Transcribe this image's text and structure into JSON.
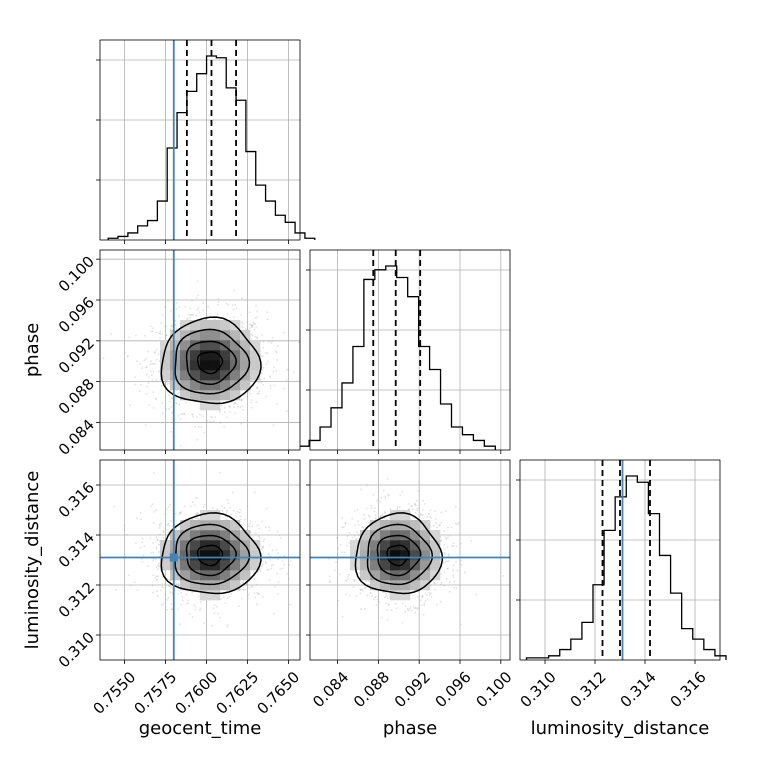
{
  "chart_data": {
    "type": "corner",
    "parameters": [
      "geocent_time",
      "phase",
      "luminosity_distance"
    ],
    "ranges": {
      "geocent_time": [
        0.7535,
        0.7657
      ],
      "phase": [
        0.0813,
        0.1009
      ],
      "luminosity_distance": [
        0.309,
        0.317
      ]
    },
    "ticks": {
      "geocent_time": [
        "0.7550",
        "0.7575",
        "0.7600",
        "0.7625",
        "0.7650"
      ],
      "phase": [
        "0.084",
        "0.088",
        "0.092",
        "0.096",
        "0.100"
      ],
      "luminosity_distance": [
        "0.310",
        "0.312",
        "0.314",
        "0.316"
      ]
    },
    "injection": {
      "geocent_time": 0.758,
      "phase": null,
      "luminosity_distance": 0.3131
    },
    "quantiles": {
      "geocent_time": [
        0.7588,
        0.7603,
        0.7618
      ],
      "phase": [
        0.0875,
        0.0897,
        0.0921
      ],
      "luminosity_distance": [
        0.3123,
        0.313,
        0.3142
      ]
    },
    "posterior": {
      "geocent_time": {
        "mean": 0.7602,
        "sd": 0.0015
      },
      "phase": {
        "mean": 0.0899,
        "sd": 0.0021
      },
      "luminosity_distance": {
        "mean": 0.3132,
        "sd": 0.0008
      }
    },
    "histograms": {
      "geocent_time": [
        1,
        2,
        4,
        8,
        11,
        22,
        52,
        72,
        84,
        94,
        104,
        103,
        86,
        79,
        50,
        31,
        22,
        14,
        10,
        4,
        1
      ],
      "phase": [
        2,
        5,
        12,
        22,
        35,
        54,
        89,
        94,
        96,
        90,
        80,
        54,
        42,
        24,
        12,
        8,
        5,
        2
      ],
      "luminosity_distance": [
        1,
        1,
        2,
        5,
        10,
        18,
        36,
        62,
        78,
        88,
        85,
        70,
        50,
        32,
        15,
        10,
        5,
        2
      ]
    },
    "grid": true,
    "colors": {
      "injection": "#4682b4",
      "lines": "#000000",
      "samples": "#aaaaaa",
      "grid": "#b0b0b0"
    }
  }
}
